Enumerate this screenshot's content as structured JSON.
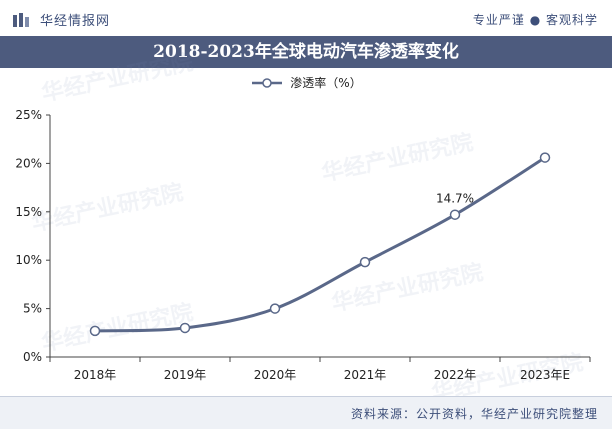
{
  "header": {
    "brand": "华经情报网",
    "tagline": "专业严谨 ● 客观科学"
  },
  "watermark_text": "华经产业研究院",
  "chart_data": {
    "type": "line",
    "title": "2018-2023年全球电动汽车渗透率变化",
    "categories": [
      "2018年",
      "2019年",
      "2020年",
      "2021年",
      "2022年",
      "2023年E"
    ],
    "series": [
      {
        "name": "渗透率（%）",
        "values": [
          2.7,
          3.0,
          5.0,
          9.8,
          14.7,
          20.6
        ]
      }
    ],
    "data_labels": [
      {
        "index": 4,
        "text": "14.7%"
      }
    ],
    "y_ticks": [
      "0%",
      "5%",
      "10%",
      "15%",
      "20%",
      "25%"
    ],
    "ylim": [
      0,
      25
    ],
    "grid": false,
    "legend_position": "top-center",
    "line_color": "#5a6889"
  },
  "footer": {
    "source": "资料来源：公开资料，华经产业研究院整理"
  }
}
